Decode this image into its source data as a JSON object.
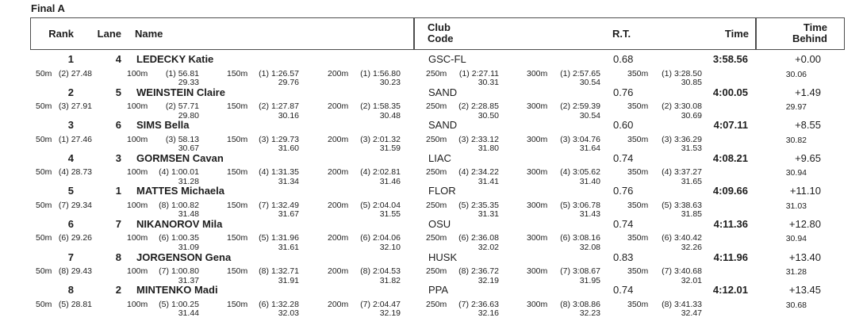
{
  "title": "Final A",
  "header": {
    "rank": "Rank",
    "lane": "Lane",
    "name": "Name",
    "club_line1": "Club",
    "club_line2": "Code",
    "rt": "R.T.",
    "time": "Time",
    "behind_line1": "Time",
    "behind_line2": "Behind"
  },
  "rows": [
    {
      "rank": "1",
      "lane": "4",
      "name": "LEDECKY Katie",
      "club": "GSC-FL",
      "rt": "0.68",
      "time": "3:58.56",
      "behind": "+0.00",
      "final_delta": "30.06",
      "splits": [
        {
          "label": "50m",
          "pos": "(2)",
          "time": "27.48",
          "delta": ""
        },
        {
          "label": "100m",
          "pos": "(1)",
          "time": "56.81",
          "delta": "29.33"
        },
        {
          "label": "150m",
          "pos": "(1)",
          "time": "1:26.57",
          "delta": "29.76"
        },
        {
          "label": "200m",
          "pos": "(1)",
          "time": "1:56.80",
          "delta": "30.23"
        },
        {
          "label": "250m",
          "pos": "(1)",
          "time": "2:27.11",
          "delta": "30.31"
        },
        {
          "label": "300m",
          "pos": "(1)",
          "time": "2:57.65",
          "delta": "30.54"
        },
        {
          "label": "350m",
          "pos": "(1)",
          "time": "3:28.50",
          "delta": "30.85"
        }
      ]
    },
    {
      "rank": "2",
      "lane": "5",
      "name": "WEINSTEIN Claire",
      "club": "SAND",
      "rt": "0.76",
      "time": "4:00.05",
      "behind": "+1.49",
      "final_delta": "29.97",
      "splits": [
        {
          "label": "50m",
          "pos": "(3)",
          "time": "27.91",
          "delta": ""
        },
        {
          "label": "100m",
          "pos": "(2)",
          "time": "57.71",
          "delta": "29.80"
        },
        {
          "label": "150m",
          "pos": "(2)",
          "time": "1:27.87",
          "delta": "30.16"
        },
        {
          "label": "200m",
          "pos": "(2)",
          "time": "1:58.35",
          "delta": "30.48"
        },
        {
          "label": "250m",
          "pos": "(2)",
          "time": "2:28.85",
          "delta": "30.50"
        },
        {
          "label": "300m",
          "pos": "(2)",
          "time": "2:59.39",
          "delta": "30.54"
        },
        {
          "label": "350m",
          "pos": "(2)",
          "time": "3:30.08",
          "delta": "30.69"
        }
      ]
    },
    {
      "rank": "3",
      "lane": "6",
      "name": "SIMS Bella",
      "club": "SAND",
      "rt": "0.60",
      "time": "4:07.11",
      "behind": "+8.55",
      "final_delta": "30.82",
      "splits": [
        {
          "label": "50m",
          "pos": "(1)",
          "time": "27.46",
          "delta": ""
        },
        {
          "label": "100m",
          "pos": "(3)",
          "time": "58.13",
          "delta": "30.67"
        },
        {
          "label": "150m",
          "pos": "(3)",
          "time": "1:29.73",
          "delta": "31.60"
        },
        {
          "label": "200m",
          "pos": "(3)",
          "time": "2:01.32",
          "delta": "31.59"
        },
        {
          "label": "250m",
          "pos": "(3)",
          "time": "2:33.12",
          "delta": "31.80"
        },
        {
          "label": "300m",
          "pos": "(3)",
          "time": "3:04.76",
          "delta": "31.64"
        },
        {
          "label": "350m",
          "pos": "(3)",
          "time": "3:36.29",
          "delta": "31.53"
        }
      ]
    },
    {
      "rank": "4",
      "lane": "3",
      "name": "GORMSEN Cavan",
      "club": "LIAC",
      "rt": "0.74",
      "time": "4:08.21",
      "behind": "+9.65",
      "final_delta": "30.94",
      "splits": [
        {
          "label": "50m",
          "pos": "(4)",
          "time": "28.73",
          "delta": ""
        },
        {
          "label": "100m",
          "pos": "(4)",
          "time": "1:00.01",
          "delta": "31.28"
        },
        {
          "label": "150m",
          "pos": "(4)",
          "time": "1:31.35",
          "delta": "31.34"
        },
        {
          "label": "200m",
          "pos": "(4)",
          "time": "2:02.81",
          "delta": "31.46"
        },
        {
          "label": "250m",
          "pos": "(4)",
          "time": "2:34.22",
          "delta": "31.41"
        },
        {
          "label": "300m",
          "pos": "(4)",
          "time": "3:05.62",
          "delta": "31.40"
        },
        {
          "label": "350m",
          "pos": "(4)",
          "time": "3:37.27",
          "delta": "31.65"
        }
      ]
    },
    {
      "rank": "5",
      "lane": "1",
      "name": "MATTES Michaela",
      "club": "FLOR",
      "rt": "0.76",
      "time": "4:09.66",
      "behind": "+11.10",
      "final_delta": "31.03",
      "splits": [
        {
          "label": "50m",
          "pos": "(7)",
          "time": "29.34",
          "delta": ""
        },
        {
          "label": "100m",
          "pos": "(8)",
          "time": "1:00.82",
          "delta": "31.48"
        },
        {
          "label": "150m",
          "pos": "(7)",
          "time": "1:32.49",
          "delta": "31.67"
        },
        {
          "label": "200m",
          "pos": "(5)",
          "time": "2:04.04",
          "delta": "31.55"
        },
        {
          "label": "250m",
          "pos": "(5)",
          "time": "2:35.35",
          "delta": "31.31"
        },
        {
          "label": "300m",
          "pos": "(5)",
          "time": "3:06.78",
          "delta": "31.43"
        },
        {
          "label": "350m",
          "pos": "(5)",
          "time": "3:38.63",
          "delta": "31.85"
        }
      ]
    },
    {
      "rank": "6",
      "lane": "7",
      "name": "NIKANOROV Mila",
      "club": "OSU",
      "rt": "0.74",
      "time": "4:11.36",
      "behind": "+12.80",
      "final_delta": "30.94",
      "splits": [
        {
          "label": "50m",
          "pos": "(6)",
          "time": "29.26",
          "delta": ""
        },
        {
          "label": "100m",
          "pos": "(6)",
          "time": "1:00.35",
          "delta": "31.09"
        },
        {
          "label": "150m",
          "pos": "(5)",
          "time": "1:31.96",
          "delta": "31.61"
        },
        {
          "label": "200m",
          "pos": "(6)",
          "time": "2:04.06",
          "delta": "32.10"
        },
        {
          "label": "250m",
          "pos": "(6)",
          "time": "2:36.08",
          "delta": "32.02"
        },
        {
          "label": "300m",
          "pos": "(6)",
          "time": "3:08.16",
          "delta": "32.08"
        },
        {
          "label": "350m",
          "pos": "(6)",
          "time": "3:40.42",
          "delta": "32.26"
        }
      ]
    },
    {
      "rank": "7",
      "lane": "8",
      "name": "JORGENSON Gena",
      "club": "HUSK",
      "rt": "0.83",
      "time": "4:11.96",
      "behind": "+13.40",
      "final_delta": "31.28",
      "splits": [
        {
          "label": "50m",
          "pos": "(8)",
          "time": "29.43",
          "delta": ""
        },
        {
          "label": "100m",
          "pos": "(7)",
          "time": "1:00.80",
          "delta": "31.37"
        },
        {
          "label": "150m",
          "pos": "(8)",
          "time": "1:32.71",
          "delta": "31.91"
        },
        {
          "label": "200m",
          "pos": "(8)",
          "time": "2:04.53",
          "delta": "31.82"
        },
        {
          "label": "250m",
          "pos": "(8)",
          "time": "2:36.72",
          "delta": "32.19"
        },
        {
          "label": "300m",
          "pos": "(7)",
          "time": "3:08.67",
          "delta": "31.95"
        },
        {
          "label": "350m",
          "pos": "(7)",
          "time": "3:40.68",
          "delta": "32.01"
        }
      ]
    },
    {
      "rank": "8",
      "lane": "2",
      "name": "MINTENKO Madi",
      "club": "PPA",
      "rt": "0.74",
      "time": "4:12.01",
      "behind": "+13.45",
      "final_delta": "30.68",
      "splits": [
        {
          "label": "50m",
          "pos": "(5)",
          "time": "28.81",
          "delta": ""
        },
        {
          "label": "100m",
          "pos": "(5)",
          "time": "1:00.25",
          "delta": "31.44"
        },
        {
          "label": "150m",
          "pos": "(6)",
          "time": "1:32.28",
          "delta": "32.03"
        },
        {
          "label": "200m",
          "pos": "(7)",
          "time": "2:04.47",
          "delta": "32.19"
        },
        {
          "label": "250m",
          "pos": "(7)",
          "time": "2:36.63",
          "delta": "32.16"
        },
        {
          "label": "300m",
          "pos": "(8)",
          "time": "3:08.86",
          "delta": "32.23"
        },
        {
          "label": "350m",
          "pos": "(8)",
          "time": "3:41.33",
          "delta": "32.47"
        }
      ]
    }
  ]
}
